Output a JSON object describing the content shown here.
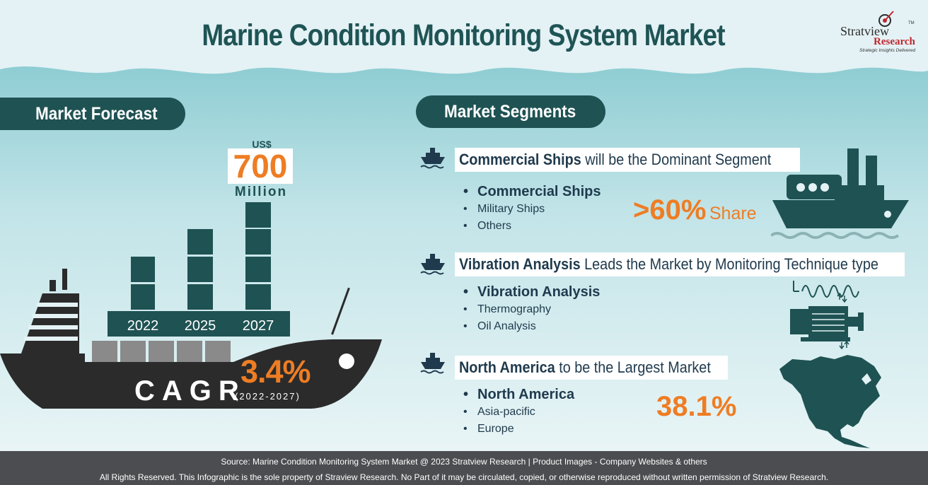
{
  "title": "Marine Condition Monitoring System Market",
  "logo": {
    "line1": "Stratview",
    "tm": "TM",
    "line2": "Research",
    "tagline": "Strategic Insights Delivered"
  },
  "forecast": {
    "heading": "Market Forecast",
    "currency": "US$",
    "value": "700",
    "unit": "Million",
    "years": [
      "2022",
      "2025",
      "2027"
    ],
    "cagr_value": "3.4%",
    "cagr_label": "CAGR",
    "cagr_period": "(2022-2027)"
  },
  "segments": {
    "heading": "Market Segments",
    "blocks": [
      {
        "head_bold": "Commercial Ships",
        "head_rest": " will be the Dominant Segment",
        "items": [
          "Commercial Ships",
          "Military Ships",
          "Others"
        ],
        "stat_value": ">60%",
        "stat_unit": "Share"
      },
      {
        "head_bold": "Vibration Analysis",
        "head_rest": " Leads the Market by Monitoring Technique type",
        "items": [
          "Vibration Analysis",
          "Thermography",
          "Oil Analysis"
        ]
      },
      {
        "head_bold": "North America",
        "head_rest": " to be the Largest Market",
        "items": [
          "North America",
          "Asia-pacific",
          "Europe"
        ],
        "stat_value": "38.1%"
      }
    ]
  },
  "footer": {
    "line1": "Source: Marine Condition Monitoring System Market @ 2023 Stratview Research | Product Images  - Company Websites & others",
    "line2": "All Rights Reserved. This Infographic is the sole property of Straview Research. No Part of it may be circulated, copied, or otherwise reproduced without written permission of Stratview Research."
  },
  "colors": {
    "teal": "#1f5253",
    "orange": "#ee7d24",
    "navy": "#1f3a4d",
    "footer": "#4b4d50"
  },
  "icons": [
    "ship-icon",
    "large-ship-icon",
    "motor-vibration-icon",
    "north-america-map-icon",
    "cargo-ship-icon"
  ]
}
